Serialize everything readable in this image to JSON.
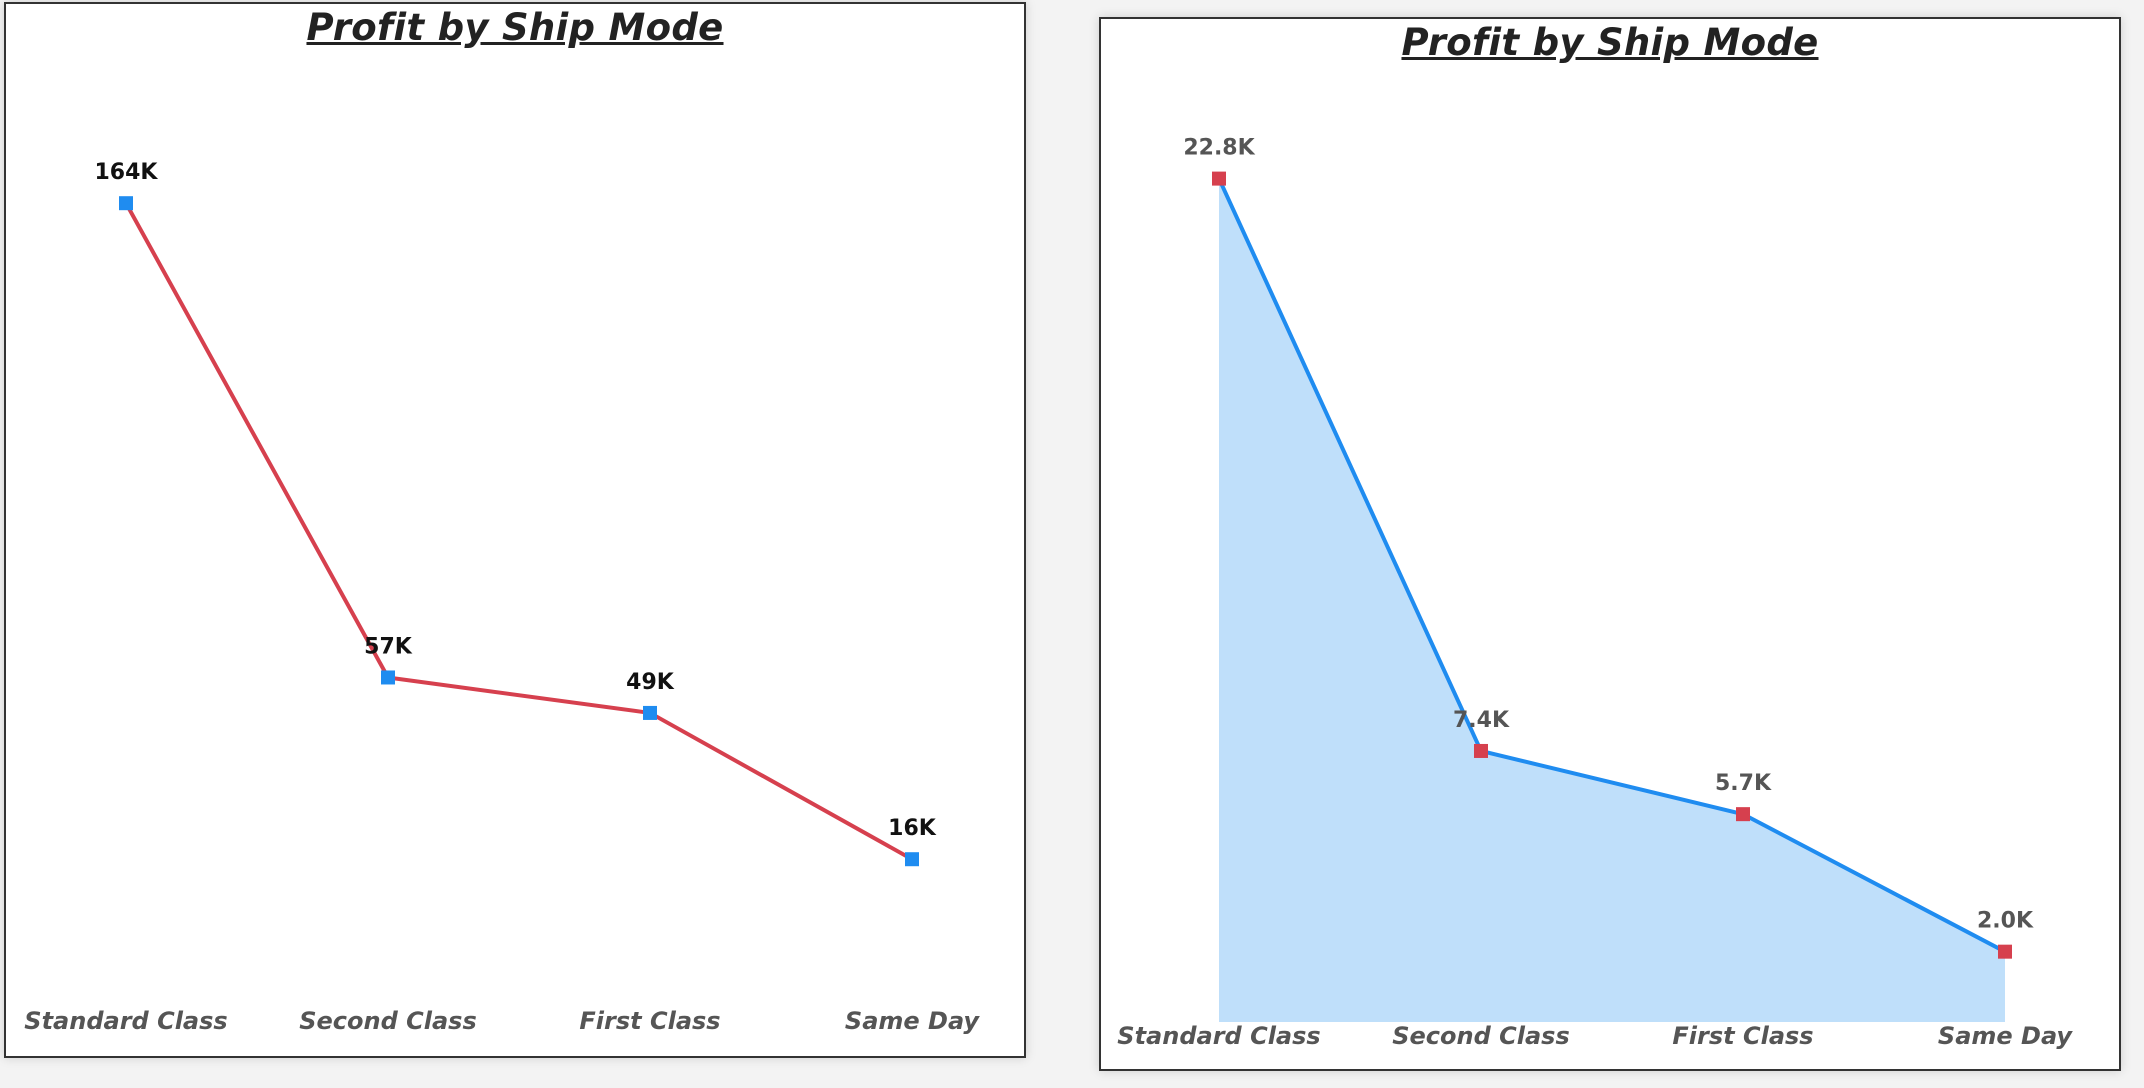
{
  "colors": {
    "line_red": "#d6404e",
    "marker_blue": "#1f8cf0",
    "line_blue": "#1f8cf0",
    "marker_red": "#d6404e",
    "area_fill": "#bfdffa",
    "label_dark": "#111111",
    "label_grey": "#555555"
  },
  "chart_data": [
    {
      "type": "line",
      "title": "Profit by Ship Mode",
      "categories": [
        "Standard Class",
        "Second Class",
        "First Class",
        "Same Day"
      ],
      "values": [
        164000,
        57000,
        49000,
        16000
      ],
      "data_labels": [
        "164K",
        "57K",
        "49K",
        "16K"
      ],
      "ylim": [
        -2000,
        176000
      ],
      "grid": false,
      "legend": "none",
      "xlabel": "",
      "ylabel": ""
    },
    {
      "type": "area",
      "title": "Profit by Ship Mode",
      "categories": [
        "Standard Class",
        "Second Class",
        "First Class",
        "Same Day"
      ],
      "values": [
        22800,
        7400,
        5700,
        2000
      ],
      "data_labels": [
        "22.8K",
        "7.4K",
        "5.7K",
        "2.0K"
      ],
      "ylim": [
        0,
        24000
      ],
      "grid": false,
      "legend": "none",
      "xlabel": "",
      "ylabel": ""
    }
  ]
}
